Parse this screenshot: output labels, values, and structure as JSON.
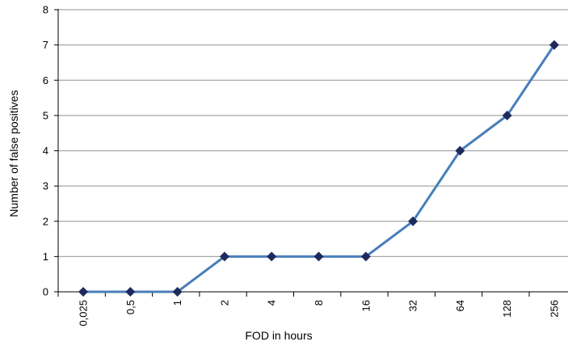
{
  "chart_data": {
    "type": "line",
    "title": "",
    "xlabel": "FOD in hours",
    "ylabel": "Number of false positives",
    "categories": [
      "0,025",
      "0,5",
      "1",
      "2",
      "4",
      "8",
      "16",
      "32",
      "64",
      "128",
      "256"
    ],
    "series": [
      {
        "values": [
          0,
          0,
          0,
          1,
          1,
          1,
          1,
          2,
          4,
          5,
          7
        ],
        "line_color": "#4a7ebb",
        "marker_color": "#1f2a5c",
        "marker": "diamond"
      }
    ],
    "ylim": [
      0,
      8
    ],
    "yticks": [
      0,
      1,
      2,
      3,
      4,
      5,
      6,
      7,
      8
    ],
    "grid": "horizontal",
    "grid_color": "#a6a6a6",
    "legend": "none"
  }
}
